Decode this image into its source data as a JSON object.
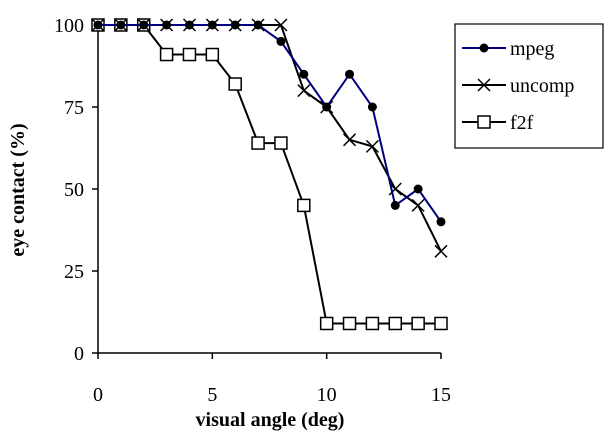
{
  "chart_data": {
    "type": "line",
    "xlabel": "visual angle (deg)",
    "ylabel": "eye contact (%)",
    "xlim": [
      0,
      15
    ],
    "ylim": [
      0,
      100
    ],
    "x_ticks": [
      0,
      5,
      10,
      15
    ],
    "y_ticks": [
      0,
      25,
      50,
      75,
      100
    ],
    "grid": false,
    "legend_position": "top-right",
    "x": [
      0,
      1,
      2,
      3,
      4,
      5,
      6,
      7,
      8,
      9,
      10,
      11,
      12,
      13,
      14,
      15
    ],
    "series": [
      {
        "name": "mpeg",
        "marker": "filled-circle",
        "color": "#000080",
        "values": [
          100,
          100,
          100,
          100,
          100,
          100,
          100,
          100,
          95,
          85,
          75,
          85,
          75,
          45,
          50,
          40
        ]
      },
      {
        "name": "uncomp",
        "marker": "x",
        "color": "#000000",
        "values": [
          100,
          100,
          100,
          100,
          100,
          100,
          100,
          100,
          100,
          80,
          75,
          65,
          63,
          50,
          45,
          31
        ]
      },
      {
        "name": "f2f",
        "marker": "open-square",
        "color": "#000000",
        "values": [
          100,
          100,
          100,
          91,
          91,
          91,
          82,
          64,
          64,
          45,
          9,
          9,
          9,
          9,
          9,
          9
        ]
      }
    ]
  }
}
